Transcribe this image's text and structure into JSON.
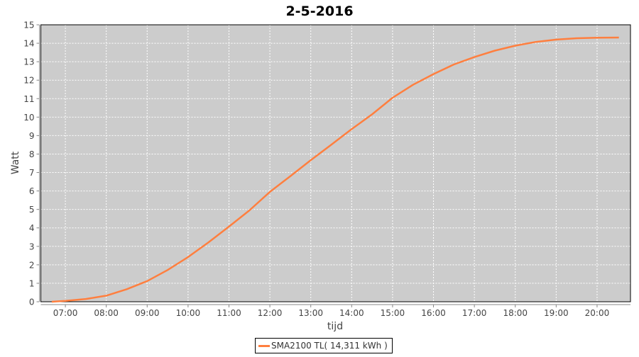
{
  "chart_data": {
    "type": "line",
    "title": "2-5-2016",
    "xlabel": "tijd",
    "ylabel": "Watt",
    "ylim": [
      0,
      15
    ],
    "xlim": [
      "06:24",
      "20:49"
    ],
    "y_ticks": [
      "0",
      "1",
      "2",
      "3",
      "4",
      "5",
      "6",
      "7",
      "8",
      "9",
      "10",
      "11",
      "12",
      "13",
      "14",
      "15"
    ],
    "x_ticks": [
      "07:00",
      "08:00",
      "09:00",
      "10:00",
      "11:00",
      "12:00",
      "13:00",
      "14:00",
      "15:00",
      "16:00",
      "17:00",
      "18:00",
      "19:00",
      "20:00"
    ],
    "grid": true,
    "legend_placement": "bottom",
    "series": [
      {
        "name": "SMA2100 TL( 14,311 kWh )",
        "color": "#ff7f3f",
        "x": [
          "06:40",
          "07:00",
          "07:30",
          "08:00",
          "08:30",
          "09:00",
          "09:30",
          "10:00",
          "10:30",
          "11:00",
          "11:30",
          "12:00",
          "12:30",
          "13:00",
          "13:30",
          "14:00",
          "14:30",
          "15:00",
          "15:30",
          "16:00",
          "16:30",
          "17:00",
          "17:30",
          "18:00",
          "18:30",
          "19:00",
          "19:30",
          "20:00",
          "20:32"
        ],
        "y": [
          0,
          0.05,
          0.15,
          0.33,
          0.68,
          1.12,
          1.72,
          2.42,
          3.22,
          4.07,
          4.95,
          5.95,
          6.8,
          7.67,
          8.5,
          9.35,
          10.15,
          11.05,
          11.75,
          12.33,
          12.85,
          13.25,
          13.6,
          13.87,
          14.07,
          14.2,
          14.27,
          14.3,
          14.31
        ]
      }
    ],
    "plot_background": "#cccccc"
  }
}
